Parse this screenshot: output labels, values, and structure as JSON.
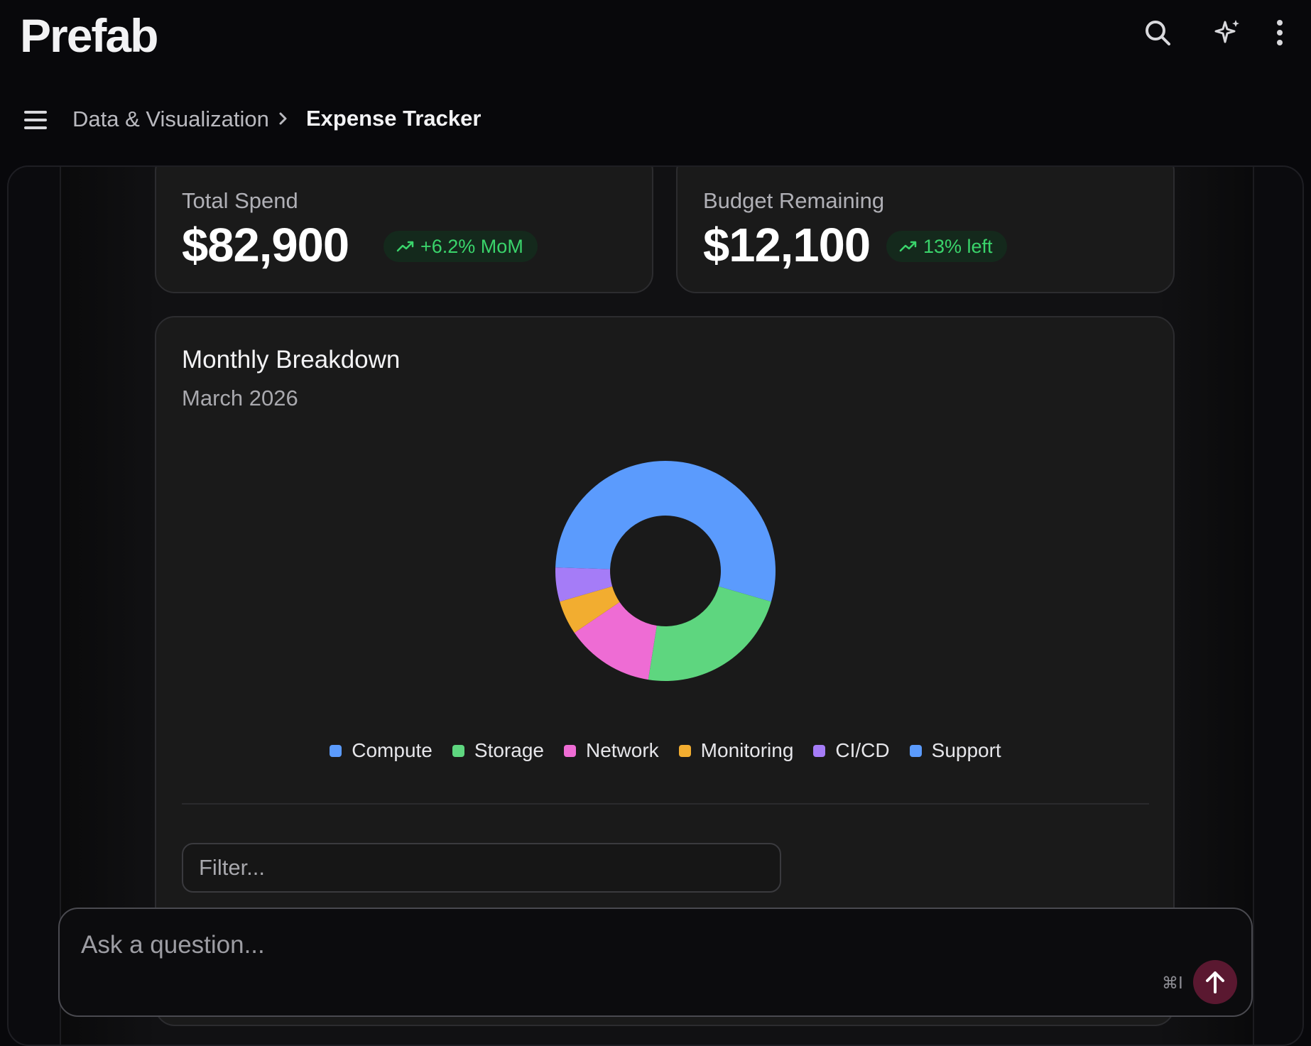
{
  "app": {
    "logo": "Prefab"
  },
  "toolbar": {
    "icons": [
      "search-icon",
      "sparkle-icon",
      "more-vertical-icon"
    ]
  },
  "breadcrumb": {
    "parent": "Data & Visualization",
    "current": "Expense Tracker"
  },
  "kpis": [
    {
      "label": "Total Spend",
      "value": "$82,900",
      "badge": "+6.2% MoM",
      "badge_icon": "trending-up-icon"
    },
    {
      "label": "Budget Remaining",
      "value": "$12,100",
      "badge": "13% left",
      "badge_icon": "trending-up-icon"
    }
  ],
  "chart_card": {
    "title": "Monthly Breakdown",
    "subtitle": "March 2026",
    "filter_placeholder": "Filter..."
  },
  "chart_data": {
    "type": "pie",
    "donut": true,
    "categories": [
      "Compute",
      "Storage",
      "Network",
      "Monitoring",
      "CI/CD",
      "Support"
    ],
    "values": [
      54,
      23,
      13,
      5,
      5,
      0
    ],
    "colors": [
      "#5b9bfd",
      "#5ed67f",
      "#ee6cd4",
      "#f2ad30",
      "#a57cf7",
      "#5b9bfd"
    ],
    "legend_position": "bottom"
  },
  "chat": {
    "placeholder": "Ask a question...",
    "shortcut": "⌘I"
  },
  "colors": {
    "accent_send": "#5a1830",
    "positive": "#3ad46b"
  }
}
